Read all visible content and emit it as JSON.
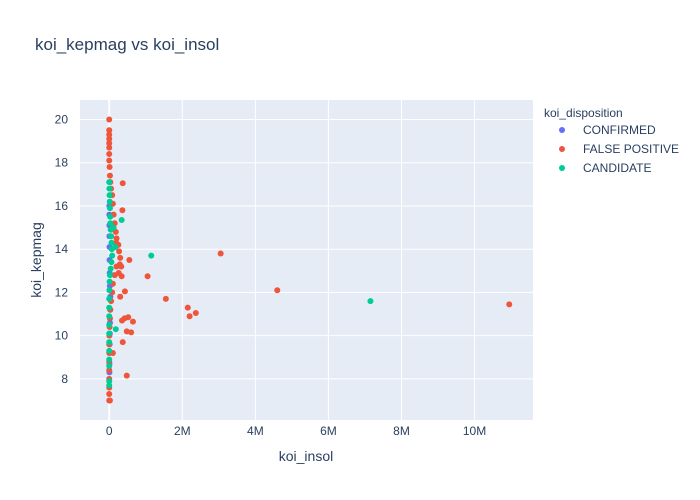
{
  "chart_data": {
    "type": "scatter",
    "title": "koi_kepmag vs koi_insol",
    "xlabel": "koi_insol",
    "ylabel": "koi_kepmag",
    "xlim": [
      -800000,
      11600000
    ],
    "ylim": [
      6.1,
      20.9
    ],
    "x_ticks": [
      0,
      2000000,
      4000000,
      6000000,
      8000000,
      10000000
    ],
    "x_tick_labels": [
      "0",
      "2M",
      "4M",
      "6M",
      "8M",
      "10M"
    ],
    "y_ticks": [
      8,
      10,
      12,
      14,
      16,
      18,
      20
    ],
    "y_tick_labels": [
      "8",
      "10",
      "12",
      "14",
      "16",
      "18",
      "20"
    ],
    "grid": true,
    "legend_title": "koi_disposition",
    "legend_position": "top-right",
    "series": [
      {
        "name": "CONFIRMED",
        "color": "#636efa",
        "points": [
          [
            5000,
            8.3
          ],
          [
            6000,
            8.7
          ],
          [
            8000,
            9.2
          ],
          [
            12000,
            9.6
          ],
          [
            15000,
            10.1
          ],
          [
            20000,
            10.6
          ],
          [
            25000,
            11.2
          ],
          [
            30000,
            11.8
          ],
          [
            18000,
            12.3
          ],
          [
            14000,
            12.9
          ],
          [
            10000,
            13.5
          ],
          [
            8000,
            14.1
          ],
          [
            6000,
            14.6
          ],
          [
            5000,
            15.1
          ],
          [
            4000,
            15.6
          ],
          [
            3000,
            16.0
          ]
        ]
      },
      {
        "name": "FALSE POSITIVE",
        "color": "#ef553b",
        "points": [
          [
            0,
            20.0
          ],
          [
            0,
            19.5
          ],
          [
            0,
            19.3
          ],
          [
            0,
            19.1
          ],
          [
            0,
            18.9
          ],
          [
            0,
            18.7
          ],
          [
            0,
            18.4
          ],
          [
            0,
            18.1
          ],
          [
            10000,
            17.8
          ],
          [
            20000,
            17.4
          ],
          [
            30000,
            17.1
          ],
          [
            50000,
            16.8
          ],
          [
            80000,
            16.5
          ],
          [
            100000,
            16.1
          ],
          [
            120000,
            15.6
          ],
          [
            150000,
            15.2
          ],
          [
            180000,
            14.8
          ],
          [
            200000,
            14.5
          ],
          [
            250000,
            14.2
          ],
          [
            270000,
            13.9
          ],
          [
            300000,
            13.6
          ],
          [
            200000,
            13.2
          ],
          [
            150000,
            12.8
          ],
          [
            100000,
            12.4
          ],
          [
            80000,
            12.0
          ],
          [
            50000,
            11.6
          ],
          [
            30000,
            11.2
          ],
          [
            20000,
            10.8
          ],
          [
            10000,
            10.4
          ],
          [
            5000,
            10.0
          ],
          [
            0,
            9.6
          ],
          [
            0,
            9.2
          ],
          [
            0,
            8.8
          ],
          [
            0,
            8.4
          ],
          [
            0,
            8.0
          ],
          [
            0,
            7.6
          ],
          [
            0,
            7.3
          ],
          [
            0,
            7.0
          ],
          [
            20000,
            7.0
          ],
          [
            370000,
            17.05
          ],
          [
            360000,
            15.8
          ],
          [
            190000,
            14.3
          ],
          [
            290000,
            13.3
          ],
          [
            330000,
            13.2
          ],
          [
            260000,
            12.9
          ],
          [
            340000,
            12.75
          ],
          [
            430000,
            12.05
          ],
          [
            300000,
            11.8
          ],
          [
            420000,
            10.8
          ],
          [
            350000,
            10.7
          ],
          [
            520000,
            10.85
          ],
          [
            650000,
            10.65
          ],
          [
            480000,
            10.2
          ],
          [
            600000,
            10.15
          ],
          [
            370000,
            9.7
          ],
          [
            100000,
            9.2
          ],
          [
            480000,
            8.15
          ],
          [
            550000,
            13.5
          ],
          [
            1050000,
            12.75
          ],
          [
            1550000,
            11.7
          ],
          [
            2150000,
            11.3
          ],
          [
            2200000,
            10.9
          ],
          [
            2370000,
            11.05
          ],
          [
            3050000,
            13.8
          ],
          [
            4600000,
            12.1
          ],
          [
            10950000,
            11.45
          ]
        ]
      },
      {
        "name": "CANDIDATE",
        "color": "#00cc96",
        "points": [
          [
            0,
            17.1
          ],
          [
            5000,
            16.8
          ],
          [
            10000,
            16.5
          ],
          [
            15000,
            16.2
          ],
          [
            20000,
            15.9
          ],
          [
            25000,
            15.5
          ],
          [
            30000,
            15.2
          ],
          [
            40000,
            14.9
          ],
          [
            50000,
            14.6
          ],
          [
            60000,
            14.3
          ],
          [
            70000,
            14.0
          ],
          [
            80000,
            13.7
          ],
          [
            60000,
            13.4
          ],
          [
            40000,
            13.1
          ],
          [
            20000,
            12.8
          ],
          [
            10000,
            12.5
          ],
          [
            5000,
            12.1
          ],
          [
            0,
            11.7
          ],
          [
            0,
            11.3
          ],
          [
            0,
            10.9
          ],
          [
            0,
            10.5
          ],
          [
            0,
            10.1
          ],
          [
            0,
            9.7
          ],
          [
            0,
            9.3
          ],
          [
            0,
            8.9
          ],
          [
            0,
            8.6
          ],
          [
            0,
            7.9
          ],
          [
            0,
            7.7
          ],
          [
            120000,
            15.0
          ],
          [
            170000,
            14.1
          ],
          [
            340000,
            15.35
          ],
          [
            1150000,
            13.7
          ],
          [
            7150000,
            11.6
          ],
          [
            180000,
            10.3
          ]
        ]
      }
    ]
  }
}
